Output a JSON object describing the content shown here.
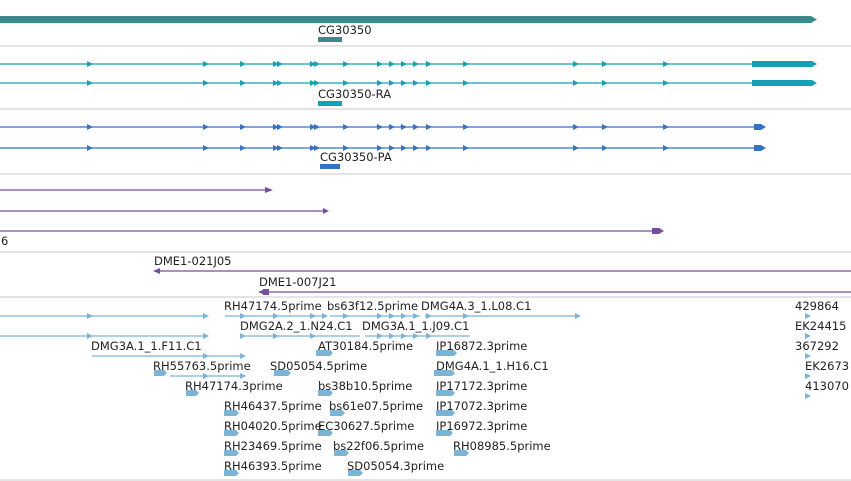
{
  "colors": {
    "gene": "#3a8a8a",
    "mrna": "#16a0b4",
    "cds": "#3472c6",
    "clone": "#744e9c",
    "est": "#7ab4d6",
    "divider": "#c8c8c8",
    "text": "#222222"
  },
  "gene_track": {
    "label": "CG30350"
  },
  "mrna_track": {
    "label": "CG30350-RA"
  },
  "cds_track": {
    "label": "CG30350-PA"
  },
  "clone_track": {
    "fragment_label": "6",
    "labels": [
      "DME1-021J05",
      "DME1-007J21"
    ]
  },
  "est_track": {
    "labels": [
      "RH47174.5prime",
      "bs63f12.5prime",
      "DMG4A.3_1.L08.C1",
      "429864",
      "DMG2A.2_1.N24.C1",
      "DMG3A.1_1.J09.C1",
      "EK24415",
      "DMG3A.1_1.F11.C1",
      "AT30184.5prime",
      "IP16872.3prime",
      "367292",
      "RH55763.5prime",
      "SD05054.5prime",
      "DMG4A.1_1.H16.C1",
      "EK2673",
      "RH47174.3prime",
      "bs38b10.5prime",
      "IP17172.3prime",
      "413070",
      "RH46437.5prime",
      "bs61e07.5prime",
      "IP17072.3prime",
      "RH04020.5prime",
      "EC30627.5prime",
      "IP16972.3prime",
      "RH23469.5prime",
      "bs22f06.5prime",
      "RH08985.5prime",
      "RH46393.5prime",
      "SD05054.3prime"
    ]
  }
}
